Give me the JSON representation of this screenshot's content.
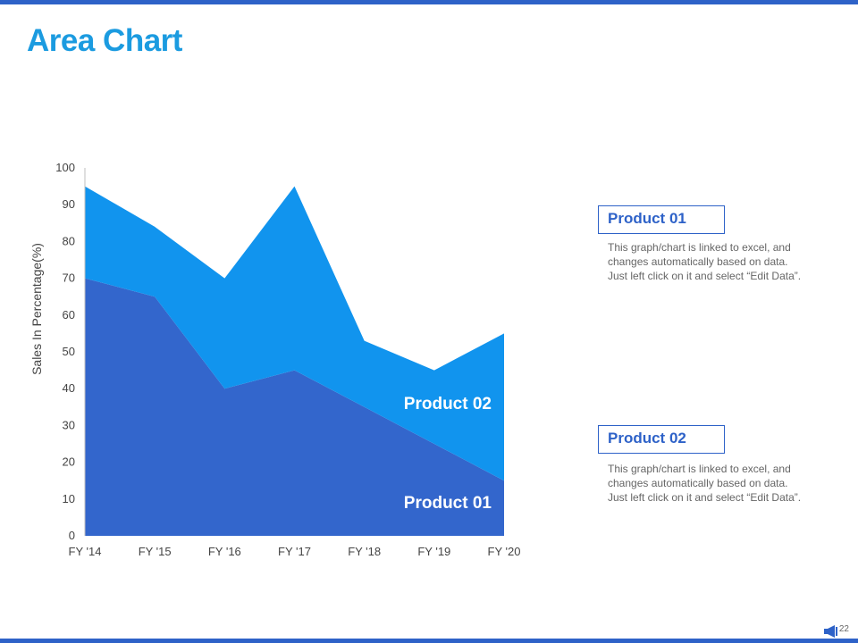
{
  "slide": {
    "title": "Area Chart",
    "page_number": "22",
    "accent_color": "#2e62c8",
    "title_color": "#1b9be0"
  },
  "legend": [
    {
      "title": "Product 01",
      "description_lines": [
        "This graph/chart is linked to excel, and",
        "changes automatically based on data.",
        "Just left click on it and select “Edit Data”."
      ]
    },
    {
      "title": "Product 02",
      "description_lines": [
        "This graph/chart is linked to excel, and",
        "changes automatically based on data.",
        "Just left click on it and select “Edit Data”."
      ]
    }
  ],
  "chart_data": {
    "type": "area",
    "stacked": true,
    "categories": [
      "FY '14",
      "FY '15",
      "FY '16",
      "FY '17",
      "FY '18",
      "FY '19",
      "FY '20"
    ],
    "series": [
      {
        "name": "Product 01",
        "color": "#3366cc",
        "values": [
          70,
          65,
          40,
          45,
          35,
          25,
          15
        ]
      },
      {
        "name": "Product 02",
        "color": "#1194ee",
        "values": [
          25,
          19,
          30,
          50,
          18,
          20,
          40
        ]
      }
    ],
    "ylabel": "Sales In Percentage(%)",
    "xlabel": "",
    "ylim": [
      0,
      100
    ],
    "yticks": [
      0,
      10,
      20,
      30,
      40,
      50,
      60,
      70,
      80,
      90,
      100
    ],
    "series_labels": [
      "Product 02",
      "Product 01"
    ]
  }
}
